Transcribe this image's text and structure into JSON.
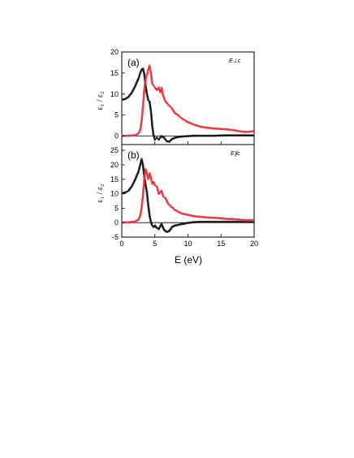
{
  "chart_data": [
    {
      "type": "line",
      "panel_label": "(a)",
      "annotation": "E⊥c",
      "xlabel": "E (eV)",
      "ylabel": "ε₁ / ε₂",
      "xlim": [
        0,
        20
      ],
      "ylim": [
        -2,
        20
      ],
      "x_ticks": [
        0,
        5,
        10,
        15,
        20
      ],
      "y_ticks": [
        0,
        5,
        10,
        15,
        20
      ],
      "show_x_tick_labels": false,
      "zero_line": true,
      "colors": {
        "eps1": "#111111",
        "eps2": "#e8313a"
      },
      "series": [
        {
          "key": "eps1",
          "x": [
            0.1,
            0.5,
            1.0,
            1.5,
            2.0,
            2.5,
            2.8,
            3.0,
            3.2,
            3.4,
            3.6,
            3.8,
            4.0,
            4.2,
            4.4,
            4.6,
            4.8,
            5.0,
            5.3,
            5.6,
            6.0,
            6.4,
            6.8,
            7.2,
            7.6,
            8.0,
            8.5,
            9.0,
            10.0,
            11.0,
            12.0,
            14.0,
            16.0,
            18.0,
            20.0
          ],
          "y": [
            8.7,
            8.8,
            9.3,
            10.3,
            11.8,
            13.6,
            15.0,
            15.8,
            16.0,
            14.8,
            12.0,
            10.0,
            8.6,
            8.2,
            6.0,
            2.5,
            0.2,
            -0.8,
            -0.4,
            -0.8,
            0.0,
            -0.4,
            -1.2,
            -1.3,
            -0.7,
            -0.4,
            -0.2,
            -0.1,
            0.0,
            0.1,
            0.1,
            0.1,
            0.2,
            0.2,
            0.2
          ]
        },
        {
          "key": "eps2",
          "x": [
            0.1,
            1.0,
            2.0,
            2.5,
            2.8,
            3.0,
            3.2,
            3.4,
            3.6,
            3.8,
            4.0,
            4.2,
            4.4,
            4.6,
            4.8,
            5.0,
            5.3,
            5.6,
            5.8,
            6.0,
            6.2,
            6.5,
            7.0,
            7.5,
            8.0,
            8.5,
            9.0,
            10.0,
            11.0,
            12.0,
            13.0,
            14.0,
            15.0,
            16.0,
            17.0,
            18.0,
            19.0,
            20.0
          ],
          "y": [
            0.1,
            0.1,
            0.2,
            0.6,
            1.5,
            3.5,
            7.0,
            11.0,
            13.5,
            14.5,
            15.8,
            16.8,
            15.0,
            12.5,
            12.0,
            11.5,
            11.0,
            11.5,
            10.5,
            11.5,
            10.0,
            8.5,
            7.5,
            6.8,
            5.5,
            5.0,
            4.3,
            3.3,
            2.7,
            2.2,
            2.0,
            1.8,
            1.7,
            1.6,
            1.4,
            1.1,
            1.0,
            1.2
          ]
        }
      ]
    },
    {
      "type": "line",
      "panel_label": "(b)",
      "annotation": "E∥c",
      "xlabel": "E (eV)",
      "ylabel": "ε₁ / ε₂",
      "xlim": [
        0,
        20
      ],
      "ylim": [
        -5,
        27
      ],
      "x_ticks": [
        0,
        5,
        10,
        15,
        20
      ],
      "y_ticks": [
        -5,
        0,
        5,
        10,
        15,
        20,
        25
      ],
      "show_x_tick_labels": true,
      "zero_line": true,
      "colors": {
        "eps1": "#111111",
        "eps2": "#e8313a"
      },
      "series": [
        {
          "key": "eps1",
          "x": [
            0.1,
            0.5,
            1.0,
            1.5,
            2.0,
            2.5,
            2.8,
            3.0,
            3.2,
            3.4,
            3.6,
            3.8,
            4.0,
            4.2,
            4.4,
            4.6,
            4.8,
            5.0,
            5.3,
            5.6,
            6.0,
            6.4,
            6.8,
            7.2,
            7.6,
            8.0,
            8.5,
            9.0,
            10.0,
            11.0,
            12.0,
            14.0,
            16.0,
            18.0,
            20.0
          ],
          "y": [
            10.2,
            10.4,
            11.0,
            12.5,
            14.8,
            17.5,
            20.0,
            22.0,
            20.0,
            16.0,
            13.0,
            10.5,
            6.0,
            2.5,
            0.2,
            -1.0,
            -1.5,
            -1.0,
            -1.8,
            -2.2,
            -0.5,
            -2.5,
            -3.2,
            -2.8,
            -1.5,
            -1.0,
            -0.8,
            -0.5,
            -0.1,
            0.2,
            0.3,
            0.3,
            0.3,
            0.3,
            0.3
          ]
        },
        {
          "key": "eps2",
          "x": [
            0.1,
            1.0,
            2.0,
            2.5,
            2.8,
            3.0,
            3.2,
            3.4,
            3.6,
            3.8,
            4.0,
            4.2,
            4.4,
            4.6,
            4.8,
            5.0,
            5.3,
            5.6,
            6.0,
            6.3,
            6.6,
            7.0,
            7.5,
            8.0,
            8.5,
            9.0,
            10.0,
            11.0,
            12.0,
            13.0,
            14.0,
            15.0,
            16.0,
            17.0,
            18.0,
            19.0,
            20.0
          ],
          "y": [
            0.1,
            0.1,
            0.4,
            1.0,
            2.5,
            5.0,
            9.5,
            15.0,
            18.5,
            17.0,
            15.0,
            17.0,
            15.5,
            13.5,
            14.0,
            13.0,
            12.5,
            10.0,
            11.0,
            9.0,
            8.5,
            6.5,
            5.5,
            4.5,
            3.8,
            3.2,
            2.7,
            2.2,
            2.0,
            1.8,
            1.7,
            1.5,
            1.3,
            1.2,
            1.0,
            0.8,
            0.9
          ]
        }
      ]
    }
  ]
}
